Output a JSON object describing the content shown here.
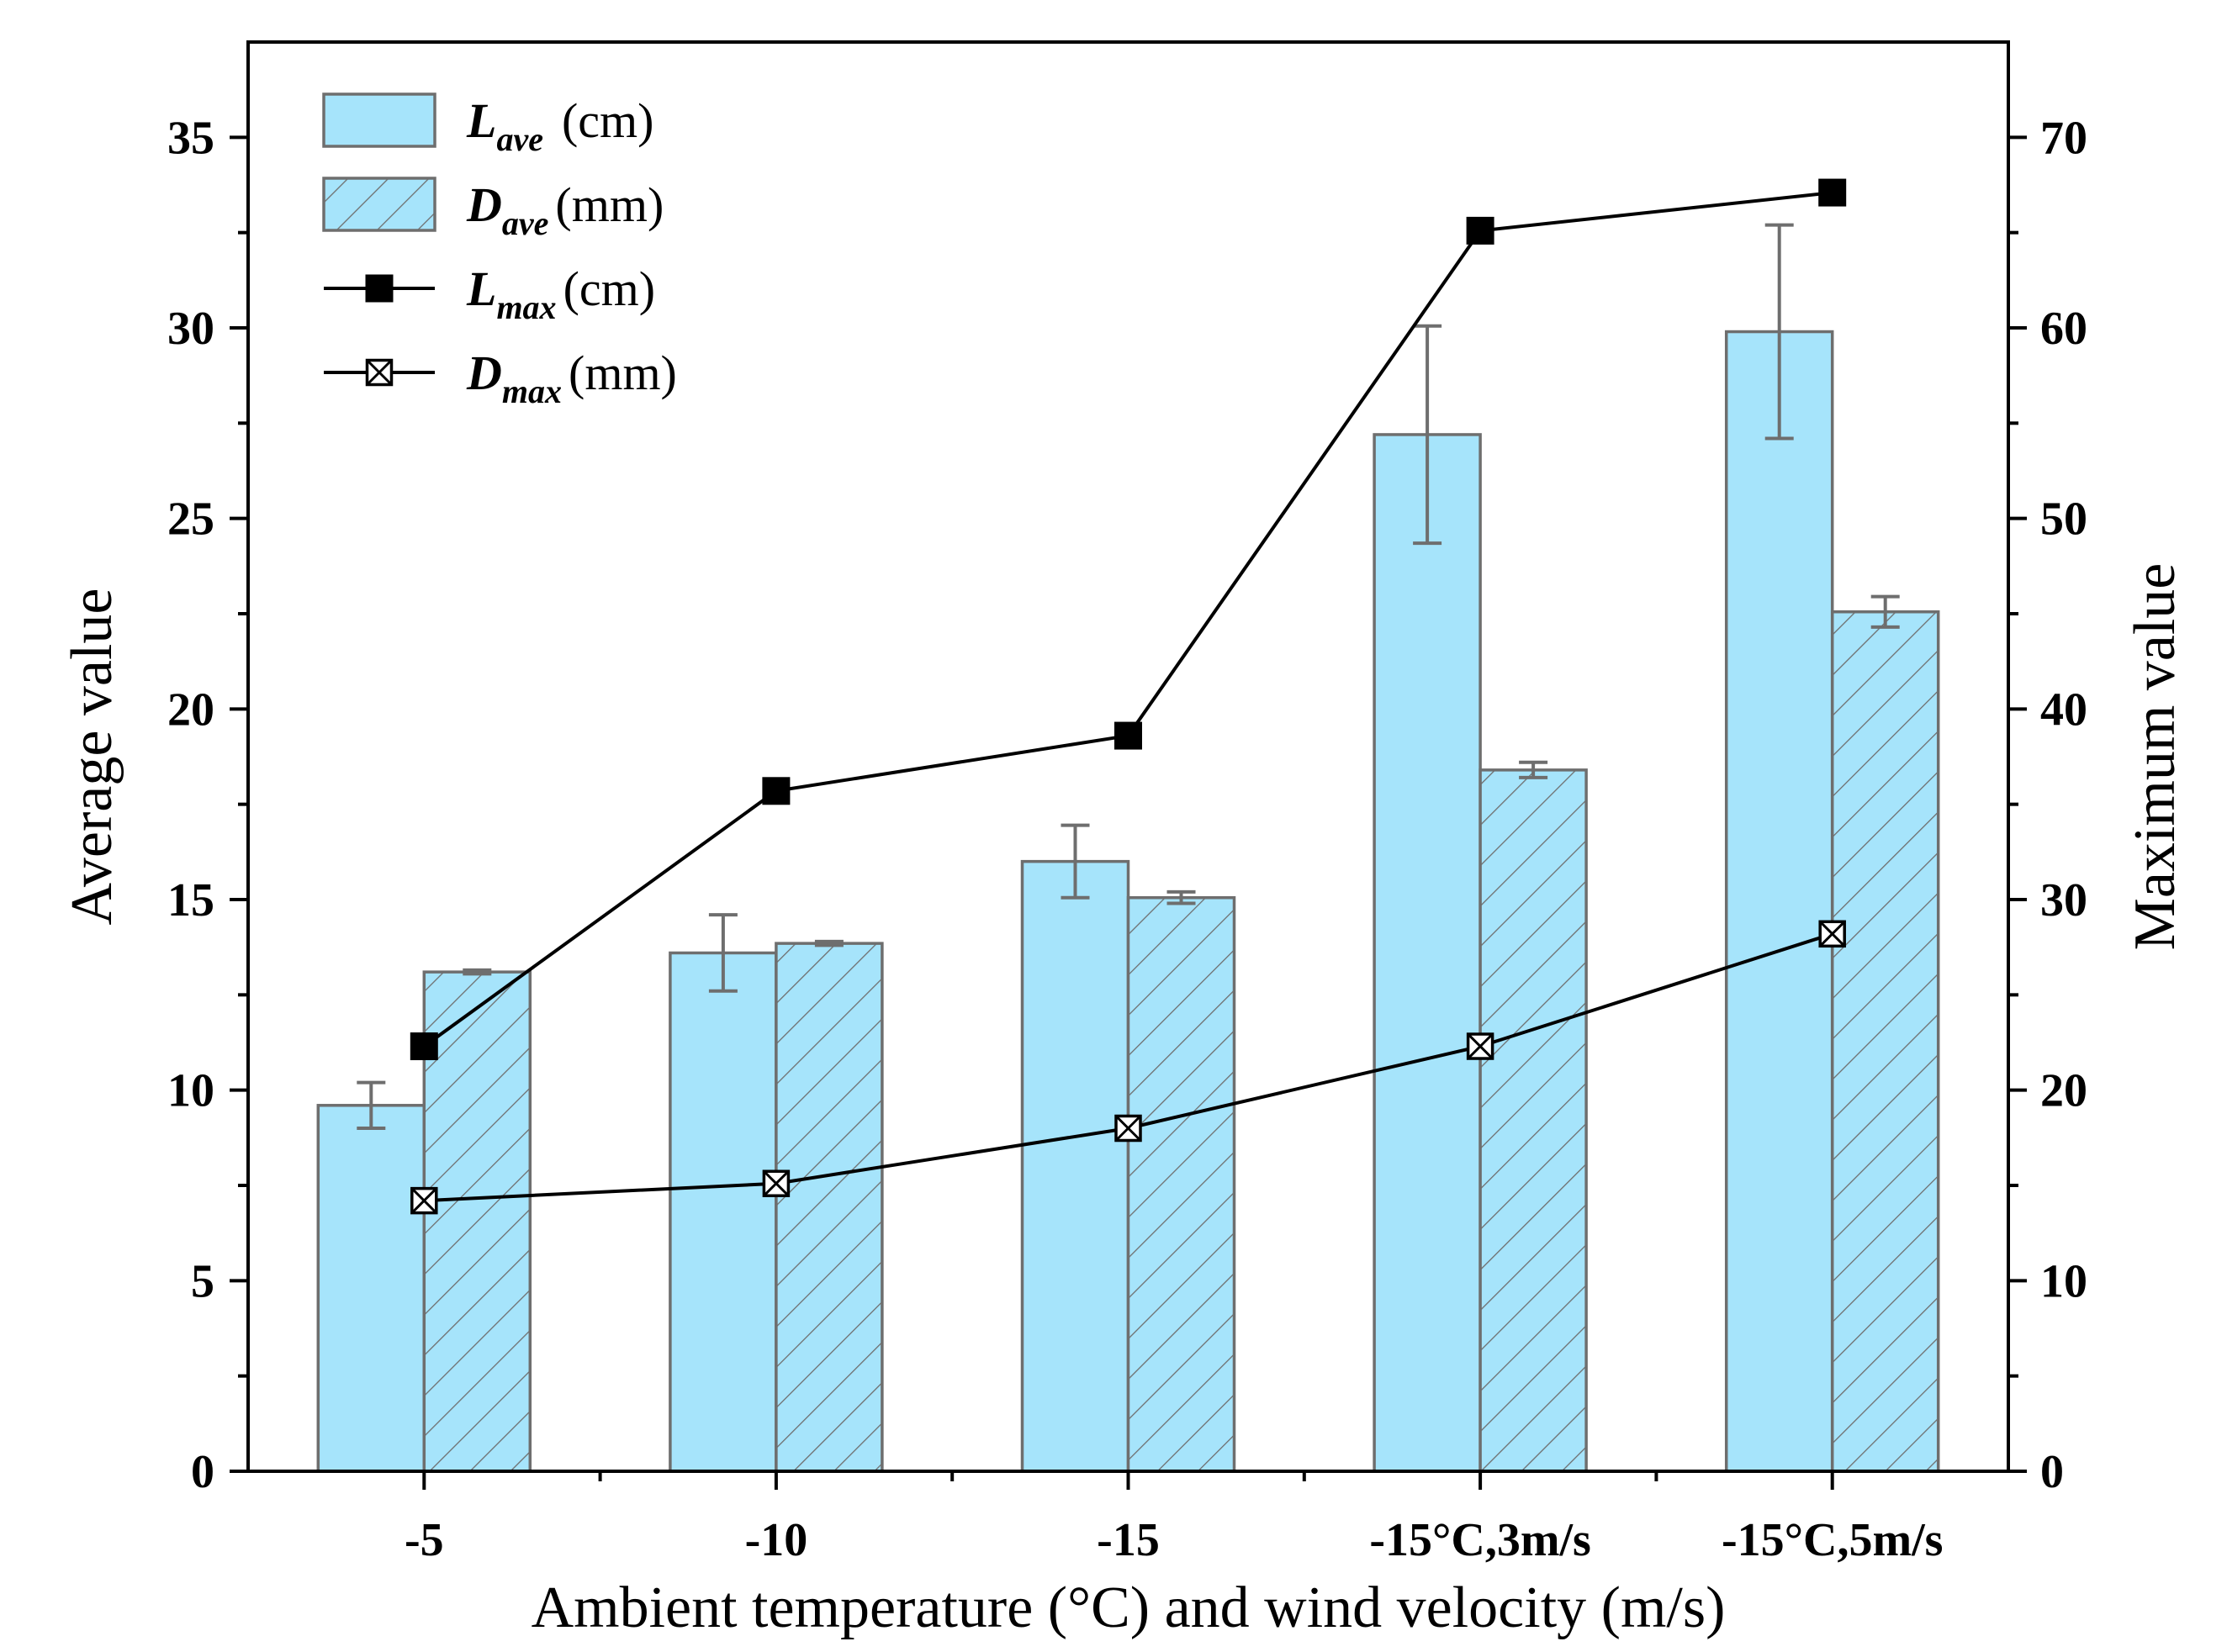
{
  "chart_data": {
    "type": "bar+line",
    "xlabel": "Ambient temperature (°C) and wind velocity (m/s)",
    "ylabel_left": "Average value",
    "ylabel_right": "Maximum value",
    "categories": [
      "-5",
      "-10",
      "-15",
      "-15°C,3m/s",
      "-15°C,5m/s"
    ],
    "ylim_left": [
      0,
      37.5
    ],
    "ylim_right": [
      0,
      75
    ],
    "yticks_left": [
      0,
      5,
      10,
      15,
      20,
      25,
      30,
      35
    ],
    "yticks_right": [
      0,
      10,
      20,
      30,
      40,
      50,
      60,
      70
    ],
    "grid": false,
    "legend_position": "top-left",
    "bar_series": [
      {
        "name": "L_ave",
        "legend_var": "L",
        "legend_sub": "ave",
        "legend_unit": "(cm)",
        "axis": "left",
        "values": [
          9.6,
          13.6,
          16.0,
          27.2,
          29.9
        ],
        "errors": [
          0.6,
          1.0,
          0.95,
          2.85,
          2.8
        ],
        "fill": "#a6e4fb",
        "hatch": false
      },
      {
        "name": "D_ave",
        "legend_var": "D",
        "legend_sub": "ave",
        "legend_unit": "(mm)",
        "axis": "left",
        "values": [
          13.1,
          13.85,
          15.05,
          18.4,
          22.55
        ],
        "errors": [
          0.05,
          0.05,
          0.15,
          0.2,
          0.4
        ],
        "fill": "#a6e4fb",
        "hatch": true
      }
    ],
    "line_series": [
      {
        "name": "L_max",
        "legend_var": "L",
        "legend_sub": "max",
        "legend_unit": "(cm)",
        "axis": "right",
        "marker": "filled-square",
        "values": [
          22.3,
          35.7,
          38.6,
          65.1,
          67.1
        ]
      },
      {
        "name": "D_max",
        "legend_var": "D",
        "legend_sub": "max",
        "legend_unit": "(mm)",
        "axis": "right",
        "marker": "crossed-square",
        "values": [
          14.2,
          15.1,
          18.0,
          22.3,
          28.2
        ]
      }
    ],
    "colors": {
      "bar_fill": "#a6e4fb",
      "bar_edge": "#6e6e6e",
      "error_bar": "#6e6e6e",
      "line": "#000000",
      "axis": "#000000"
    }
  }
}
